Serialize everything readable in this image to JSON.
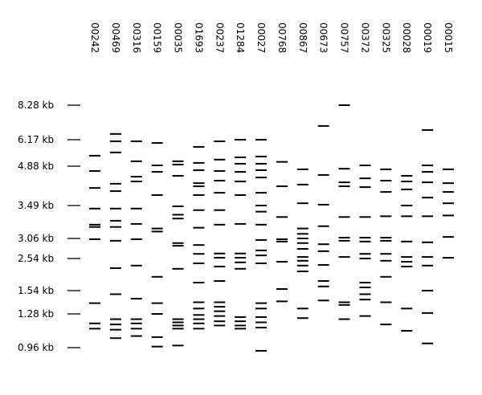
{
  "chart_data": {
    "type": "gel",
    "categories": [
      "00242",
      "00469",
      "00316",
      "00159",
      "00035",
      "01693",
      "00237",
      "01284",
      "00027",
      "00768",
      "00867",
      "00673",
      "00757",
      "00372",
      "00325",
      "00028",
      "00019",
      "00015"
    ],
    "color": "#000000",
    "ylim": [
      0.96,
      8.28
    ],
    "yticks": [
      {
        "value": 0.96,
        "label": "0.96 kb"
      },
      {
        "value": 1.28,
        "label": "1.28 kb"
      },
      {
        "value": 1.54,
        "label": "1.54 kb"
      },
      {
        "value": 2.54,
        "label": "2.54 kb"
      },
      {
        "value": 3.06,
        "label": "3.06 kb"
      },
      {
        "value": 3.49,
        "label": "3.49 kb"
      },
      {
        "value": 4.88,
        "label": "4.88 kb"
      },
      {
        "value": 6.17,
        "label": "6.17 kb"
      },
      {
        "value": 8.28,
        "label": "8.28 kb"
      }
    ],
    "bands": [
      [
        5.39,
        4.71,
        4.11,
        3.45,
        3.24,
        3.21,
        3.04,
        1.4,
        1.19,
        1.14
      ],
      [
        6.52,
        6.09,
        5.55,
        4.26,
        4.0,
        3.45,
        3.29,
        3.21,
        3.0,
        2.24,
        1.5,
        1.23,
        1.18,
        1.13,
        1.05
      ],
      [
        6.09,
        5.12,
        4.51,
        4.34,
        3.45,
        3.25,
        3.04,
        2.32,
        1.45,
        1.23,
        1.19,
        1.14,
        1.07
      ],
      [
        6.01,
        4.92,
        4.68,
        3.86,
        3.19,
        3.15,
        1.97,
        1.4,
        1.28,
        1.06,
        0.97
      ],
      [
        5.12,
        4.96,
        4.54,
        3.48,
        3.37,
        3.32,
        2.94,
        2.87,
        2.22,
        1.23,
        1.2,
        1.17,
        1.14,
        0.98
      ],
      [
        5.82,
        5.04,
        4.74,
        4.28,
        4.17,
        3.86,
        3.43,
        3.2,
        2.89,
        2.66,
        2.39,
        1.79,
        1.41,
        1.34,
        1.27,
        1.23,
        1.19,
        1.14
      ],
      [
        6.09,
        5.2,
        4.71,
        4.37,
        3.94,
        3.43,
        3.24,
        2.67,
        2.56,
        2.29,
        1.84,
        1.41,
        1.36,
        1.31,
        1.26,
        1.21,
        1.17
      ],
      [
        6.17,
        5.31,
        5.0,
        4.68,
        4.34,
        3.86,
        3.25,
        2.67,
        2.56,
        2.42,
        2.22,
        1.25,
        1.21,
        1.17,
        1.14
      ],
      [
        6.17,
        5.35,
        5.0,
        4.74,
        4.48,
        3.94,
        3.49,
        3.41,
        3.24,
        3.02,
        2.75,
        2.62,
        2.39,
        1.4,
        1.34,
        1.25,
        1.2,
        1.15,
        0.93
      ],
      [
        5.09,
        4.17,
        3.34,
        3.04,
        2.98,
        2.44,
        1.59,
        1.42
      ],
      [
        4.77,
        4.23,
        3.57,
        3.19,
        3.12,
        3.06,
        2.94,
        2.79,
        2.58,
        2.47,
        2.32,
        2.14,
        1.34,
        1.24
      ],
      [
        7.01,
        4.57,
        3.52,
        3.22,
        2.91,
        2.73,
        2.34,
        1.84,
        1.67,
        1.43
      ],
      [
        8.28,
        4.79,
        4.31,
        4.17,
        3.34,
        3.07,
        3.0,
        2.58,
        1.41,
        1.38,
        1.23
      ],
      [
        4.92,
        4.45,
        4.14,
        3.34,
        3.07,
        2.98,
        2.66,
        2.54,
        1.79,
        1.64,
        1.5,
        1.44,
        1.26
      ],
      [
        4.77,
        4.37,
        3.97,
        3.35,
        3.07,
        3.0,
        2.66,
        2.47,
        1.97,
        1.41,
        1.18
      ],
      [
        4.54,
        4.34,
        4.06,
        3.49,
        3.35,
        2.98,
        2.58,
        2.44,
        2.29,
        1.34,
        1.12
      ],
      [
        6.76,
        4.92,
        4.68,
        4.31,
        3.77,
        3.35,
        2.96,
        2.58,
        2.32,
        1.54,
        1.29,
        1.0
      ],
      [
        4.77,
        4.28,
        3.97,
        3.57,
        3.36,
        3.08,
        2.56
      ]
    ]
  }
}
